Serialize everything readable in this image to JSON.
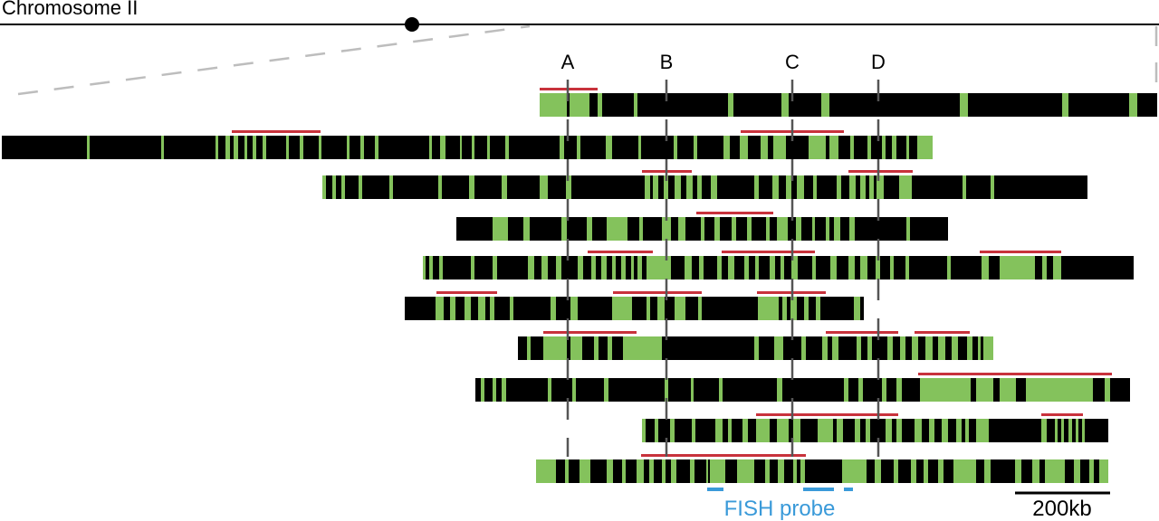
{
  "title": "Chromosome II",
  "markers": [
    "A",
    "B",
    "C",
    "D"
  ],
  "probe_label": "FISH probe",
  "scale_label": "200kb",
  "colors": {
    "track": "#000000",
    "segment": "#84c25c",
    "highlight": "#c8323c",
    "probe": "#3a9ad9",
    "marker_line": "#555555",
    "zoom_line": "#bdbdbd"
  }
}
